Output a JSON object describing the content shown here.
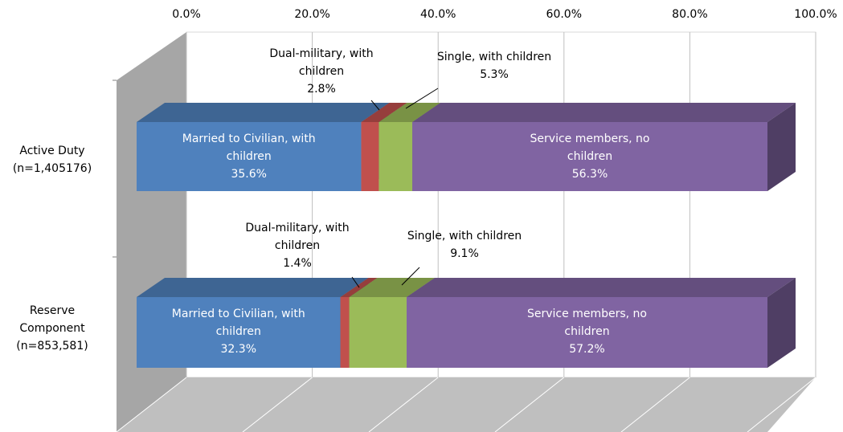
{
  "chart_data": {
    "type": "bar3d-stacked-horizontal",
    "categories": [
      "Active Duty\n(n=1,405176)",
      "Reserve\nComponent\n(n=853,581)"
    ],
    "series": [
      {
        "name": "Married to Civilian, with children",
        "color": "#4f81bd",
        "values": [
          35.6,
          32.3
        ],
        "value_labels": [
          "35.6%",
          "32.3%"
        ]
      },
      {
        "name": "Dual-military, with children",
        "color": "#c0504d",
        "values": [
          2.8,
          1.4
        ],
        "value_labels": [
          "2.8%",
          "1.4%"
        ]
      },
      {
        "name": "Single, with children",
        "color": "#9bbb59",
        "values": [
          5.3,
          9.1
        ],
        "value_labels": [
          "5.3%",
          "9.1%"
        ]
      },
      {
        "name": "Service members, no children",
        "color": "#8064a2",
        "values": [
          56.3,
          57.2
        ],
        "value_labels": [
          "56.3%",
          "57.2%"
        ]
      }
    ],
    "xlim": [
      0,
      100
    ],
    "xticks": [
      {
        "value": 0,
        "label": "0.0%"
      },
      {
        "value": 20,
        "label": "20.0%"
      },
      {
        "value": 40,
        "label": "40.0%"
      },
      {
        "value": 60,
        "label": "60.0%"
      },
      {
        "value": 80,
        "label": "80.0%"
      },
      {
        "value": 100,
        "label": "100.0%"
      }
    ],
    "grid": true
  }
}
